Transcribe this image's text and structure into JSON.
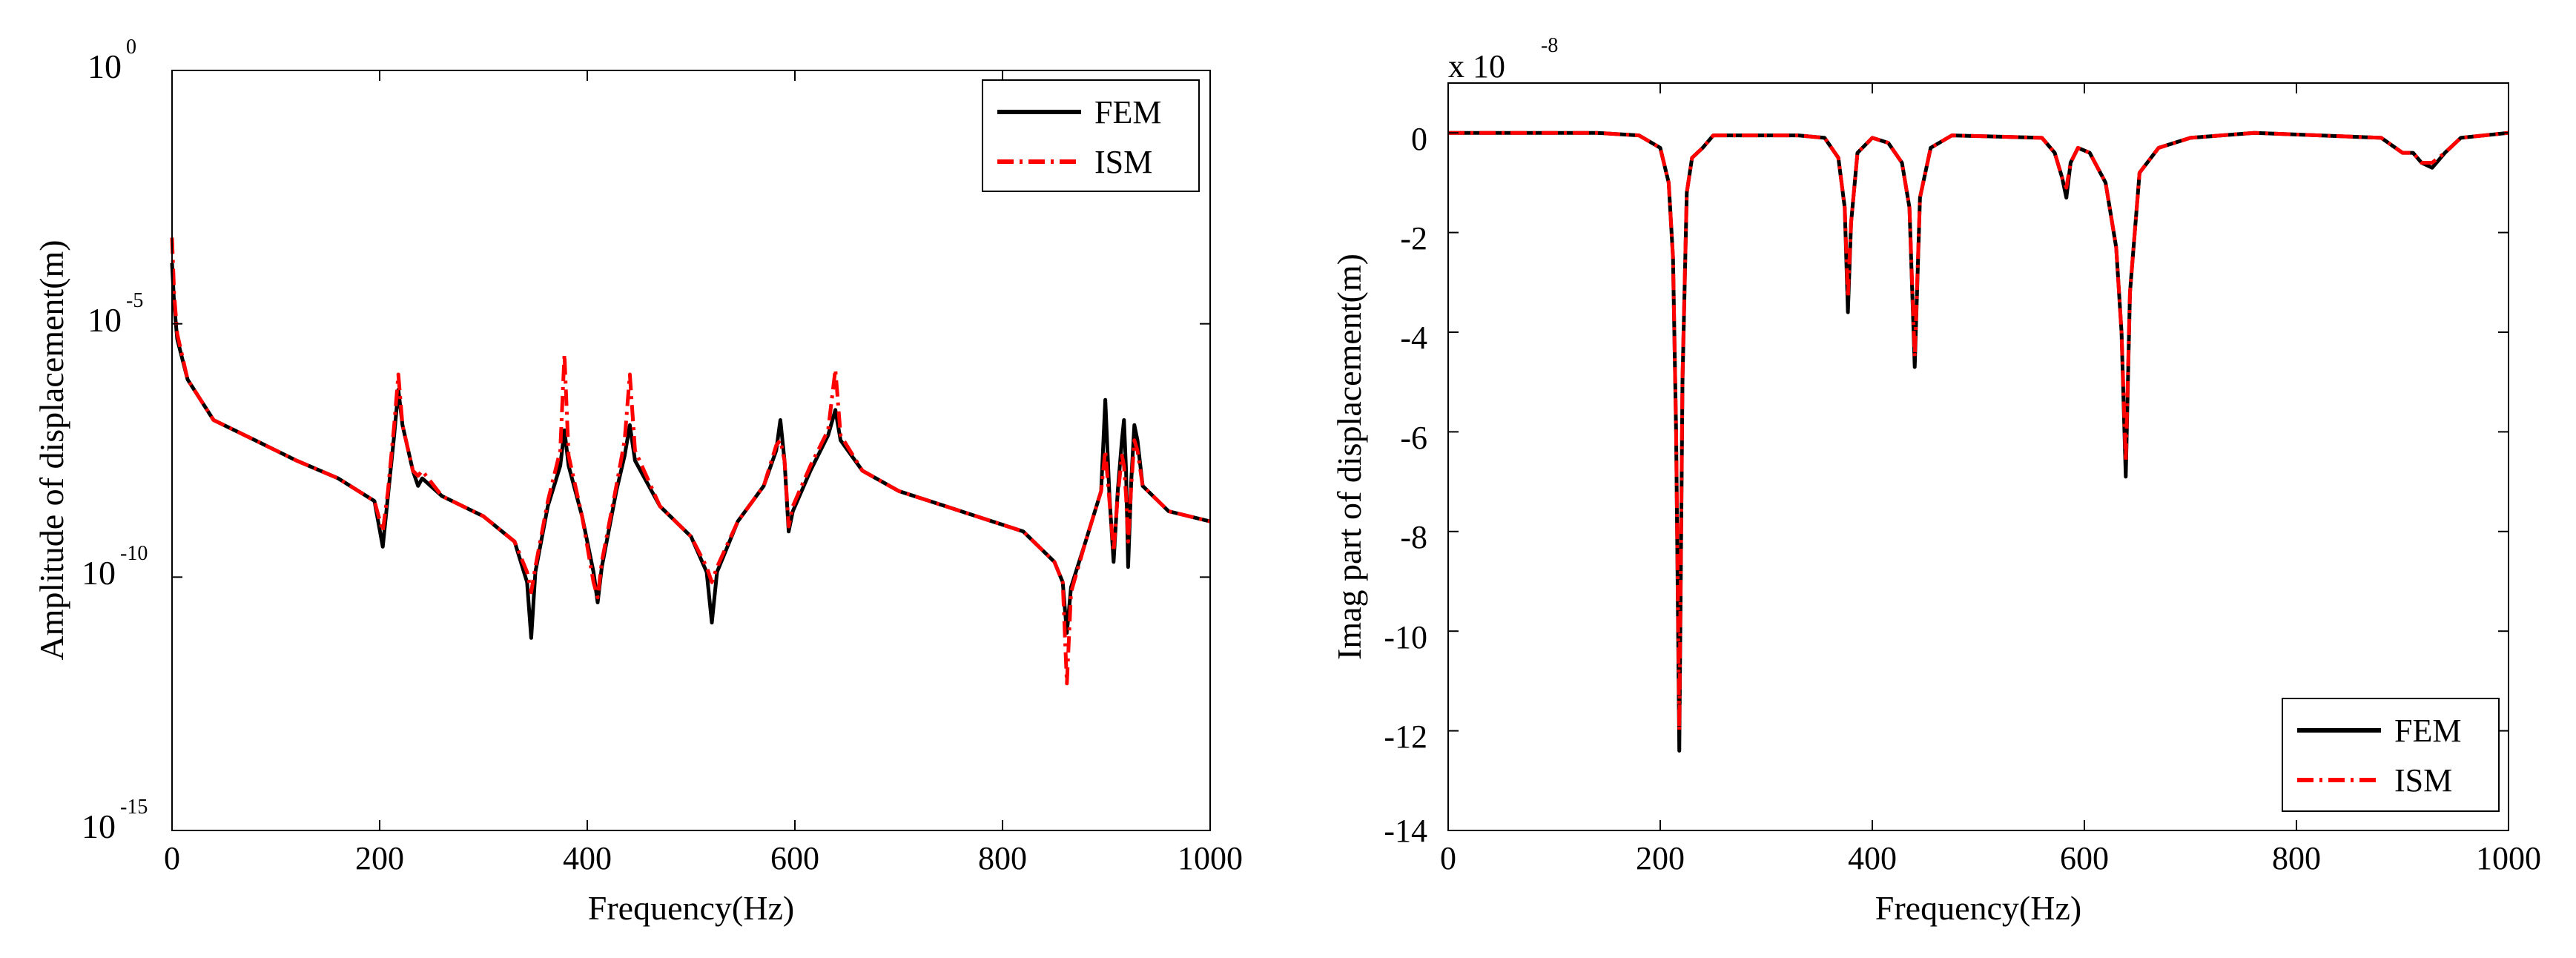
{
  "chart_data": [
    {
      "type": "line",
      "yscale": "log",
      "xlabel": "Frequency(Hz)",
      "ylabel": "Amplitude of displacement(m)",
      "xlim": [
        0,
        1000
      ],
      "ylim_exponents": [
        -15,
        0
      ],
      "xticks": [
        0,
        200,
        400,
        600,
        800,
        1000
      ],
      "xtick_labels": [
        "0",
        "200",
        "400",
        "600",
        "800",
        "1000"
      ],
      "yticks_exponents": [
        -15,
        -10,
        -5,
        0
      ],
      "ytick_labels": [
        {
          "base": "10",
          "exp": "-15"
        },
        {
          "base": "10",
          "exp": "-10"
        },
        {
          "base": "10",
          "exp": "-5"
        },
        {
          "base": "10",
          "exp": "0"
        }
      ],
      "legend": {
        "position": "top-right",
        "entries": [
          "FEM",
          "ISM"
        ]
      },
      "series": [
        {
          "name": "FEM",
          "color": "#000000",
          "style": "solid",
          "points": [
            [
              0,
              -3.8
            ],
            [
              2,
              -4.6
            ],
            [
              5,
              -5.3
            ],
            [
              15,
              -6.1
            ],
            [
              40,
              -6.9
            ],
            [
              80,
              -7.3
            ],
            [
              120,
              -7.7
            ],
            [
              160,
              -8.05
            ],
            [
              195,
              -8.5
            ],
            [
              203,
              -9.4
            ],
            [
              208,
              -8.4
            ],
            [
              214,
              -7.2
            ],
            [
              218,
              -6.3
            ],
            [
              222,
              -7.0
            ],
            [
              232,
              -7.9
            ],
            [
              237,
              -8.2
            ],
            [
              241,
              -8.05
            ],
            [
              260,
              -8.4
            ],
            [
              300,
              -8.8
            ],
            [
              330,
              -9.3
            ],
            [
              342,
              -10.1
            ],
            [
              346,
              -11.2
            ],
            [
              350,
              -9.9
            ],
            [
              362,
              -8.6
            ],
            [
              374,
              -7.8
            ],
            [
              378,
              -7.1
            ],
            [
              382,
              -7.8
            ],
            [
              395,
              -8.8
            ],
            [
              406,
              -9.9
            ],
            [
              410,
              -10.5
            ],
            [
              414,
              -9.8
            ],
            [
              428,
              -8.3
            ],
            [
              436,
              -7.6
            ],
            [
              441,
              -7.0
            ],
            [
              446,
              -7.7
            ],
            [
              470,
              -8.6
            ],
            [
              500,
              -9.2
            ],
            [
              515,
              -9.9
            ],
            [
              520,
              -10.9
            ],
            [
              525,
              -9.9
            ],
            [
              545,
              -8.9
            ],
            [
              570,
              -8.2
            ],
            [
              582,
              -7.5
            ],
            [
              586,
              -6.9
            ],
            [
              590,
              -7.7
            ],
            [
              594,
              -9.1
            ],
            [
              598,
              -8.7
            ],
            [
              615,
              -7.9
            ],
            [
              632,
              -7.2
            ],
            [
              639,
              -6.7
            ],
            [
              644,
              -7.3
            ],
            [
              665,
              -7.9
            ],
            [
              700,
              -8.3
            ],
            [
              760,
              -8.7
            ],
            [
              820,
              -9.1
            ],
            [
              850,
              -9.7
            ],
            [
              858,
              -10.1
            ],
            [
              862,
              -11.1
            ],
            [
              866,
              -10.2
            ],
            [
              880,
              -9.3
            ],
            [
              895,
              -8.3
            ],
            [
              899,
              -6.5
            ],
            [
              903,
              -8.4
            ],
            [
              907,
              -9.7
            ],
            [
              911,
              -8.3
            ],
            [
              915,
              -7.3
            ],
            [
              917,
              -6.9
            ],
            [
              919,
              -7.9
            ],
            [
              921,
              -9.8
            ],
            [
              924,
              -8.1
            ],
            [
              927,
              -7.0
            ],
            [
              930,
              -7.3
            ],
            [
              935,
              -8.2
            ],
            [
              960,
              -8.7
            ],
            [
              1000,
              -8.9
            ]
          ]
        },
        {
          "name": "ISM",
          "color": "#ff0000",
          "style": "dashdot",
          "points": [
            [
              0,
              -3.3
            ],
            [
              2,
              -4.4
            ],
            [
              5,
              -5.2
            ],
            [
              15,
              -6.1
            ],
            [
              40,
              -6.9
            ],
            [
              80,
              -7.3
            ],
            [
              120,
              -7.7
            ],
            [
              160,
              -8.05
            ],
            [
              195,
              -8.5
            ],
            [
              203,
              -9.1
            ],
            [
              208,
              -8.3
            ],
            [
              214,
              -7.0
            ],
            [
              218,
              -6.0
            ],
            [
              222,
              -7.0
            ],
            [
              232,
              -7.9
            ],
            [
              237,
              -8.0
            ],
            [
              241,
              -7.9
            ],
            [
              260,
              -8.4
            ],
            [
              300,
              -8.8
            ],
            [
              330,
              -9.3
            ],
            [
              342,
              -9.9
            ],
            [
              346,
              -10.3
            ],
            [
              350,
              -9.8
            ],
            [
              362,
              -8.5
            ],
            [
              374,
              -7.5
            ],
            [
              378,
              -5.6
            ],
            [
              382,
              -7.6
            ],
            [
              395,
              -8.8
            ],
            [
              406,
              -10.1
            ],
            [
              410,
              -10.4
            ],
            [
              414,
              -9.7
            ],
            [
              428,
              -8.2
            ],
            [
              436,
              -7.3
            ],
            [
              441,
              -6.0
            ],
            [
              446,
              -7.5
            ],
            [
              470,
              -8.6
            ],
            [
              500,
              -9.2
            ],
            [
              515,
              -9.8
            ],
            [
              520,
              -10.1
            ],
            [
              525,
              -9.8
            ],
            [
              545,
              -8.9
            ],
            [
              570,
              -8.2
            ],
            [
              582,
              -7.4
            ],
            [
              586,
              -7.3
            ],
            [
              590,
              -7.7
            ],
            [
              594,
              -9.0
            ],
            [
              598,
              -8.6
            ],
            [
              615,
              -7.8
            ],
            [
              632,
              -7.1
            ],
            [
              639,
              -5.9
            ],
            [
              644,
              -7.2
            ],
            [
              665,
              -7.9
            ],
            [
              700,
              -8.3
            ],
            [
              760,
              -8.7
            ],
            [
              820,
              -9.1
            ],
            [
              850,
              -9.7
            ],
            [
              858,
              -10.1
            ],
            [
              862,
              -12.1
            ],
            [
              866,
              -10.3
            ],
            [
              880,
              -9.3
            ],
            [
              895,
              -8.3
            ],
            [
              899,
              -7.5
            ],
            [
              903,
              -8.5
            ],
            [
              907,
              -9.5
            ],
            [
              911,
              -8.4
            ],
            [
              915,
              -7.6
            ],
            [
              917,
              -7.8
            ],
            [
              919,
              -8.4
            ],
            [
              921,
              -9.3
            ],
            [
              924,
              -8.2
            ],
            [
              927,
              -7.3
            ],
            [
              930,
              -7.5
            ],
            [
              935,
              -8.2
            ],
            [
              960,
              -8.7
            ],
            [
              1000,
              -8.9
            ]
          ]
        }
      ]
    },
    {
      "type": "line",
      "xlabel": "Frequency(Hz)",
      "ylabel": "Imag part of displacement(m)",
      "scale_label": {
        "prefix": "x 10",
        "exp": "-8"
      },
      "xlim": [
        0,
        1000
      ],
      "ylim": [
        -14,
        1
      ],
      "xticks": [
        0,
        200,
        400,
        600,
        800,
        1000
      ],
      "xtick_labels": [
        "0",
        "200",
        "400",
        "600",
        "800",
        "1000"
      ],
      "yticks": [
        0,
        -2,
        -4,
        -6,
        -8,
        -10,
        -12,
        -14
      ],
      "ytick_labels": [
        "0",
        "-2",
        "-4",
        "-6",
        "-8",
        "-10",
        "-12",
        "-14"
      ],
      "legend": {
        "position": "bottom-right",
        "entries": [
          "FEM",
          "ISM"
        ]
      },
      "series": [
        {
          "name": "FEM",
          "color": "#000000",
          "style": "solid",
          "points": [
            [
              0,
              0
            ],
            [
              140,
              0
            ],
            [
              180,
              -0.05
            ],
            [
              200,
              -0.3
            ],
            [
              208,
              -1.0
            ],
            [
              212,
              -2.5
            ],
            [
              215,
              -6.0
            ],
            [
              218,
              -12.4
            ],
            [
              221,
              -5.0
            ],
            [
              225,
              -1.2
            ],
            [
              230,
              -0.5
            ],
            [
              240,
              -0.3
            ],
            [
              250,
              -0.05
            ],
            [
              330,
              -0.05
            ],
            [
              355,
              -0.1
            ],
            [
              368,
              -0.5
            ],
            [
              374,
              -1.5
            ],
            [
              377,
              -3.6
            ],
            [
              380,
              -1.8
            ],
            [
              386,
              -0.4
            ],
            [
              400,
              -0.1
            ],
            [
              415,
              -0.2
            ],
            [
              428,
              -0.6
            ],
            [
              435,
              -1.5
            ],
            [
              440,
              -4.7
            ],
            [
              445,
              -1.3
            ],
            [
              455,
              -0.3
            ],
            [
              475,
              -0.05
            ],
            [
              560,
              -0.1
            ],
            [
              572,
              -0.4
            ],
            [
              579,
              -0.9
            ],
            [
              583,
              -1.3
            ],
            [
              587,
              -0.6
            ],
            [
              594,
              -0.3
            ],
            [
              605,
              -0.4
            ],
            [
              620,
              -1.0
            ],
            [
              630,
              -2.3
            ],
            [
              635,
              -4.0
            ],
            [
              639,
              -6.9
            ],
            [
              643,
              -3.2
            ],
            [
              652,
              -0.8
            ],
            [
              670,
              -0.3
            ],
            [
              700,
              -0.1
            ],
            [
              760,
              0
            ],
            [
              880,
              -0.1
            ],
            [
              900,
              -0.4
            ],
            [
              910,
              -0.4
            ],
            [
              918,
              -0.6
            ],
            [
              928,
              -0.7
            ],
            [
              940,
              -0.4
            ],
            [
              955,
              -0.1
            ],
            [
              1000,
              0
            ]
          ]
        },
        {
          "name": "ISM",
          "color": "#ff0000",
          "style": "dashdot",
          "points": [
            [
              0,
              0
            ],
            [
              140,
              0
            ],
            [
              180,
              -0.05
            ],
            [
              200,
              -0.3
            ],
            [
              208,
              -1.0
            ],
            [
              212,
              -2.5
            ],
            [
              215,
              -6.0
            ],
            [
              218,
              -12.0
            ],
            [
              221,
              -4.9
            ],
            [
              225,
              -1.2
            ],
            [
              230,
              -0.5
            ],
            [
              240,
              -0.3
            ],
            [
              250,
              -0.05
            ],
            [
              330,
              -0.05
            ],
            [
              355,
              -0.1
            ],
            [
              368,
              -0.5
            ],
            [
              374,
              -1.5
            ],
            [
              377,
              -3.3
            ],
            [
              380,
              -1.8
            ],
            [
              386,
              -0.4
            ],
            [
              400,
              -0.1
            ],
            [
              415,
              -0.2
            ],
            [
              428,
              -0.6
            ],
            [
              435,
              -1.5
            ],
            [
              440,
              -4.5
            ],
            [
              445,
              -1.3
            ],
            [
              455,
              -0.3
            ],
            [
              475,
              -0.05
            ],
            [
              560,
              -0.1
            ],
            [
              572,
              -0.4
            ],
            [
              579,
              -0.9
            ],
            [
              583,
              -1.1
            ],
            [
              587,
              -0.6
            ],
            [
              594,
              -0.3
            ],
            [
              605,
              -0.4
            ],
            [
              620,
              -1.0
            ],
            [
              630,
              -2.3
            ],
            [
              635,
              -4.0
            ],
            [
              639,
              -6.6
            ],
            [
              643,
              -3.2
            ],
            [
              652,
              -0.8
            ],
            [
              670,
              -0.3
            ],
            [
              700,
              -0.1
            ],
            [
              760,
              0
            ],
            [
              880,
              -0.1
            ],
            [
              900,
              -0.4
            ],
            [
              910,
              -0.4
            ],
            [
              918,
              -0.6
            ],
            [
              928,
              -0.6
            ],
            [
              940,
              -0.4
            ],
            [
              955,
              -0.1
            ],
            [
              1000,
              0
            ]
          ]
        }
      ]
    }
  ]
}
